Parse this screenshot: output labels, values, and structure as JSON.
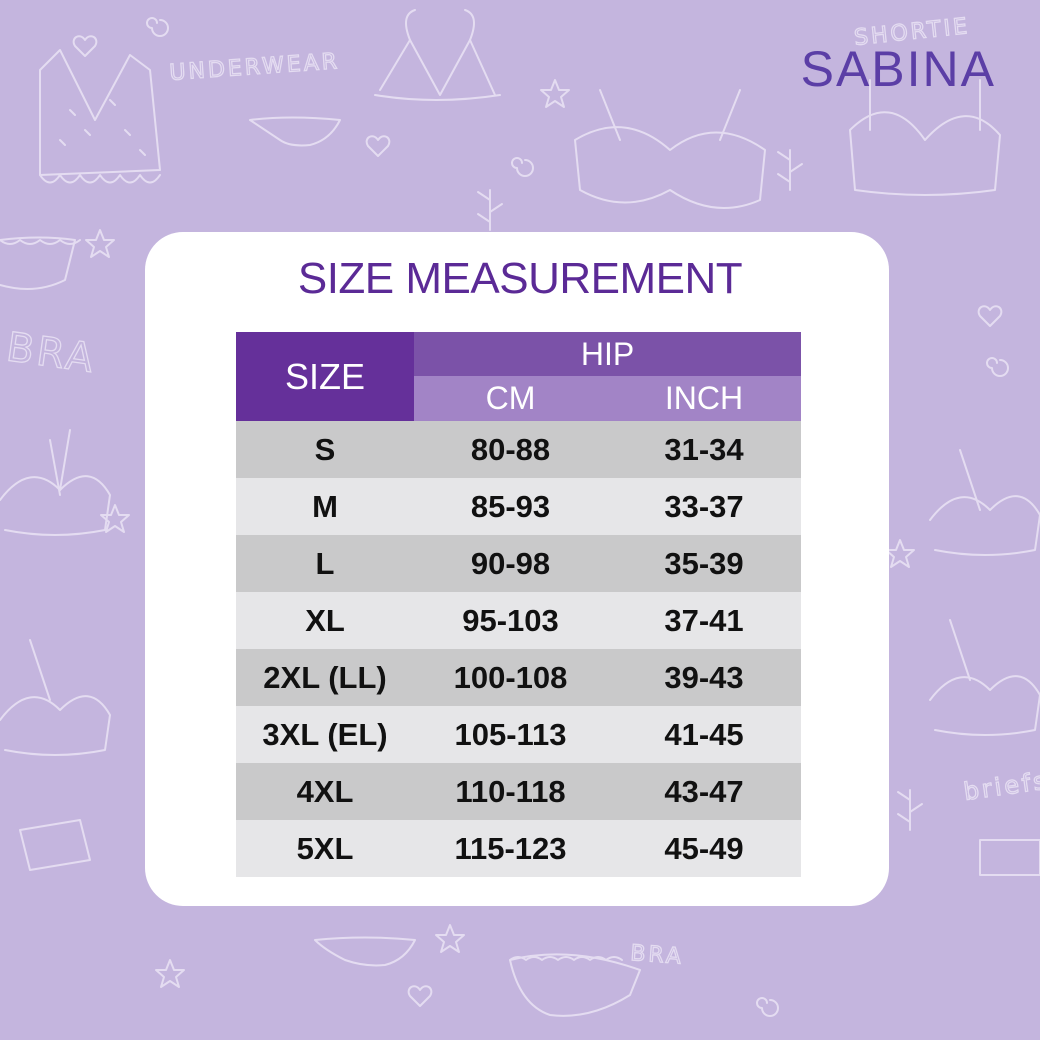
{
  "brand": {
    "logo_text": "SABINA"
  },
  "background": {
    "doodle_words": [
      "UNDERWEAR",
      "SHORTIE",
      "BRA",
      "BRA",
      "briefs"
    ]
  },
  "colors": {
    "background": "#c4b5de",
    "card": "#ffffff",
    "title": "#5b2a96",
    "size_header": "#65309a",
    "hip_header": "#7b52a8",
    "subheader": "#a284c6",
    "row_dark": "#c9c9ca",
    "row_light": "#e6e6e8",
    "logo": "#5b3ea6"
  },
  "chart_data": {
    "type": "table",
    "title": "SIZE MEASUREMENT",
    "headers": {
      "size": "SIZE",
      "group": "HIP",
      "cm": "CM",
      "inch": "INCH"
    },
    "rows": [
      {
        "size": "S",
        "cm": "80-88",
        "inch": "31-34"
      },
      {
        "size": "M",
        "cm": "85-93",
        "inch": "33-37"
      },
      {
        "size": "L",
        "cm": "90-98",
        "inch": "35-39"
      },
      {
        "size": "XL",
        "cm": "95-103",
        "inch": "37-41"
      },
      {
        "size": "2XL (LL)",
        "cm": "100-108",
        "inch": "39-43"
      },
      {
        "size": "3XL (EL)",
        "cm": "105-113",
        "inch": "41-45"
      },
      {
        "size": "4XL",
        "cm": "110-118",
        "inch": "43-47"
      },
      {
        "size": "5XL",
        "cm": "115-123",
        "inch": "45-49"
      }
    ]
  }
}
